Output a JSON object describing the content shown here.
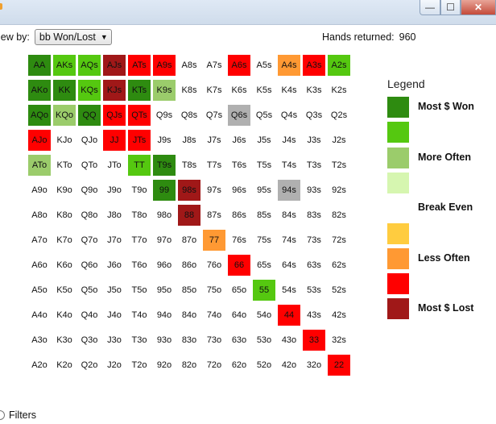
{
  "window": {
    "minimize_glyph": "—",
    "maximize_glyph": "☐",
    "close_glyph": "✕"
  },
  "viewby": {
    "label": "iew by:",
    "selected": "bb Won/Lost",
    "arrow_icon": "chevron-down-icon"
  },
  "hands": {
    "label": "Hands returned:",
    "value": "960"
  },
  "colors": {
    "dark_green": "#2e8b10",
    "mid_green": "#55c810",
    "light_green": "#9bcc6b",
    "pale_green": "#d6f6b0",
    "white": "#ffffff",
    "yellow": "#ffcc3f",
    "orange": "#ff9933",
    "red": "#ff0000",
    "dark_red": "#a01818",
    "gray": "#b0b0b0"
  },
  "grid": {
    "rows": [
      [
        "AA",
        "AKs",
        "AQs",
        "AJs",
        "ATs",
        "A9s",
        "A8s",
        "A7s",
        "A6s",
        "A5s",
        "A4s",
        "A3s",
        "A2s"
      ],
      [
        "AKo",
        "KK",
        "KQs",
        "KJs",
        "KTs",
        "K9s",
        "K8s",
        "K7s",
        "K6s",
        "K5s",
        "K4s",
        "K3s",
        "K2s"
      ],
      [
        "AQo",
        "KQo",
        "QQ",
        "QJs",
        "QTs",
        "Q9s",
        "Q8s",
        "Q7s",
        "Q6s",
        "Q5s",
        "Q4s",
        "Q3s",
        "Q2s"
      ],
      [
        "AJo",
        "KJo",
        "QJo",
        "JJ",
        "JTs",
        "J9s",
        "J8s",
        "J7s",
        "J6s",
        "J5s",
        "J4s",
        "J3s",
        "J2s"
      ],
      [
        "ATo",
        "KTo",
        "QTo",
        "JTo",
        "TT",
        "T9s",
        "T8s",
        "T7s",
        "T6s",
        "T5s",
        "T4s",
        "T3s",
        "T2s"
      ],
      [
        "A9o",
        "K9o",
        "Q9o",
        "J9o",
        "T9o",
        "99",
        "98s",
        "97s",
        "96s",
        "95s",
        "94s",
        "93s",
        "92s"
      ],
      [
        "A8o",
        "K8o",
        "Q8o",
        "J8o",
        "T8o",
        "98o",
        "88",
        "87s",
        "86s",
        "85s",
        "84s",
        "83s",
        "82s"
      ],
      [
        "A7o",
        "K7o",
        "Q7o",
        "J7o",
        "T7o",
        "97o",
        "87o",
        "77",
        "76s",
        "75s",
        "74s",
        "73s",
        "72s"
      ],
      [
        "A6o",
        "K6o",
        "Q6o",
        "J6o",
        "T6o",
        "96o",
        "86o",
        "76o",
        "66",
        "65s",
        "64s",
        "63s",
        "62s"
      ],
      [
        "A5o",
        "K5o",
        "Q5o",
        "J5o",
        "T5o",
        "95o",
        "85o",
        "75o",
        "65o",
        "55",
        "54s",
        "53s",
        "52s"
      ],
      [
        "A4o",
        "K4o",
        "Q4o",
        "J4o",
        "T4o",
        "94o",
        "84o",
        "74o",
        "64o",
        "54o",
        "44",
        "43s",
        "42s"
      ],
      [
        "A3o",
        "K3o",
        "Q3o",
        "J3o",
        "T3o",
        "93o",
        "83o",
        "73o",
        "63o",
        "53o",
        "43o",
        "33",
        "32s"
      ],
      [
        "A2o",
        "K2o",
        "Q2o",
        "J2o",
        "T2o",
        "92o",
        "82o",
        "72o",
        "62o",
        "52o",
        "42o",
        "32o",
        "22"
      ]
    ],
    "fills": [
      [
        "dark_green",
        "mid_green",
        "mid_green",
        "dark_red",
        "red",
        "red",
        "white",
        "white",
        "red",
        "white",
        "orange",
        "red",
        "mid_green"
      ],
      [
        "dark_green",
        "dark_green",
        "mid_green",
        "dark_red",
        "dark_green",
        "light_green",
        "white",
        "white",
        "white",
        "white",
        "white",
        "white",
        "white"
      ],
      [
        "dark_green",
        "light_green",
        "dark_green",
        "red",
        "red",
        "white",
        "white",
        "white",
        "gray",
        "white",
        "white",
        "white",
        "white"
      ],
      [
        "red",
        "white",
        "white",
        "red",
        "red",
        "white",
        "white",
        "white",
        "white",
        "white",
        "white",
        "white",
        "white"
      ],
      [
        "light_green",
        "white",
        "white",
        "white",
        "mid_green",
        "dark_green",
        "white",
        "white",
        "white",
        "white",
        "white",
        "white",
        "white"
      ],
      [
        "white",
        "white",
        "white",
        "white",
        "white",
        "dark_green",
        "dark_red",
        "white",
        "white",
        "white",
        "gray",
        "white",
        "white"
      ],
      [
        "white",
        "white",
        "white",
        "white",
        "white",
        "white",
        "dark_red",
        "white",
        "white",
        "white",
        "white",
        "white",
        "white"
      ],
      [
        "white",
        "white",
        "white",
        "white",
        "white",
        "white",
        "white",
        "orange",
        "white",
        "white",
        "white",
        "white",
        "white"
      ],
      [
        "white",
        "white",
        "white",
        "white",
        "white",
        "white",
        "white",
        "white",
        "red",
        "white",
        "white",
        "white",
        "white"
      ],
      [
        "white",
        "white",
        "white",
        "white",
        "white",
        "white",
        "white",
        "white",
        "white",
        "mid_green",
        "white",
        "white",
        "white"
      ],
      [
        "white",
        "white",
        "white",
        "white",
        "white",
        "white",
        "white",
        "white",
        "white",
        "white",
        "red",
        "white",
        "white"
      ],
      [
        "white",
        "white",
        "white",
        "white",
        "white",
        "white",
        "white",
        "white",
        "white",
        "white",
        "white",
        "red",
        "white"
      ],
      [
        "white",
        "white",
        "white",
        "white",
        "white",
        "white",
        "white",
        "white",
        "white",
        "white",
        "white",
        "white",
        "red"
      ]
    ]
  },
  "legend": {
    "title": "Legend",
    "items": [
      {
        "label": "Most $ Won",
        "color": "dark_green"
      },
      {
        "label": "",
        "color": "mid_green"
      },
      {
        "label": "More Often",
        "color": "light_green"
      },
      {
        "label": "",
        "color": "pale_green"
      },
      {
        "label": "Break Even",
        "color": "white"
      },
      {
        "label": "",
        "color": "yellow"
      },
      {
        "label": "Less Often",
        "color": "orange"
      },
      {
        "label": "",
        "color": "red"
      },
      {
        "label": "Most $ Lost",
        "color": "dark_red"
      }
    ]
  },
  "filters": {
    "label": "Filters"
  }
}
